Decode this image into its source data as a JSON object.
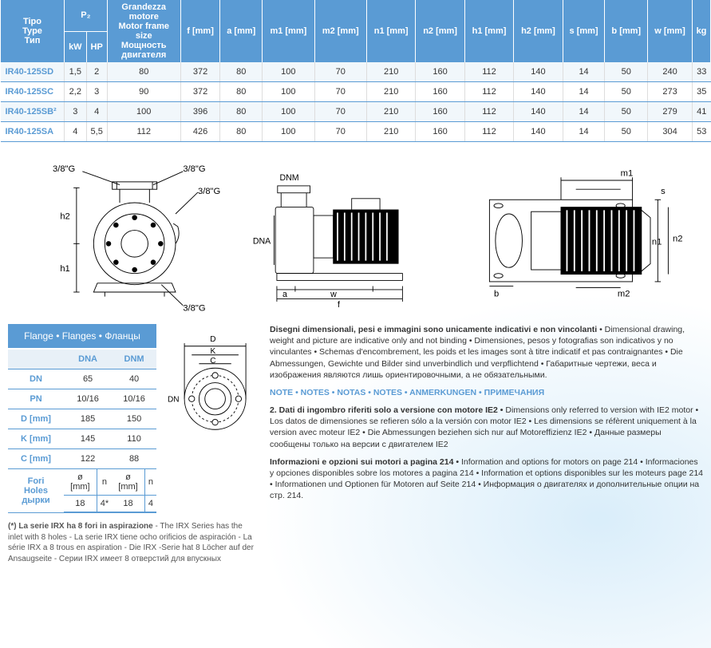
{
  "main_table": {
    "headers": {
      "type": [
        "Tipo",
        "Type",
        "Тип"
      ],
      "p2": "P₂",
      "p2_sub": [
        "kW",
        "HP"
      ],
      "motor": [
        "Grandezza motore",
        "Motor frame size",
        "Мощность двигателя"
      ],
      "dims": [
        "f [mm]",
        "a [mm]",
        "m1 [mm]",
        "m2 [mm]",
        "n1 [mm]",
        "n2 [mm]",
        "h1 [mm]",
        "h2 [mm]",
        "s [mm]",
        "b [mm]",
        "w [mm]",
        "kg"
      ]
    },
    "rows": [
      {
        "model": "IR40-125SD",
        "kw": "1,5",
        "hp": "2",
        "motor": "80",
        "f": "372",
        "a": "80",
        "m1": "100",
        "m2": "70",
        "n1": "210",
        "n2": "160",
        "h1": "112",
        "h2": "140",
        "s": "14",
        "b": "50",
        "w": "240",
        "kg": "33"
      },
      {
        "model": "IR40-125SC",
        "kw": "2,2",
        "hp": "3",
        "motor": "90",
        "f": "372",
        "a": "80",
        "m1": "100",
        "m2": "70",
        "n1": "210",
        "n2": "160",
        "h1": "112",
        "h2": "140",
        "s": "14",
        "b": "50",
        "w": "273",
        "kg": "35"
      },
      {
        "model": "IR40-125SB²",
        "kw": "3",
        "hp": "4",
        "motor": "100",
        "f": "396",
        "a": "80",
        "m1": "100",
        "m2": "70",
        "n1": "210",
        "n2": "160",
        "h1": "112",
        "h2": "140",
        "s": "14",
        "b": "50",
        "w": "279",
        "kg": "41"
      },
      {
        "model": "IR40-125SA",
        "kw": "4",
        "hp": "5,5",
        "motor": "112",
        "f": "426",
        "a": "80",
        "m1": "100",
        "m2": "70",
        "n1": "210",
        "n2": "160",
        "h1": "112",
        "h2": "140",
        "s": "14",
        "b": "50",
        "w": "304",
        "kg": "53"
      }
    ]
  },
  "diagram_labels": {
    "g38": "3/8\"G",
    "dnm": "DNM",
    "dna": "DNA",
    "a": "a",
    "f": "f",
    "w": "w",
    "b": "b",
    "h1": "h1",
    "h2": "h2",
    "n1": "n1",
    "n2": "n2",
    "m1": "m1",
    "m2": "m2",
    "s": "s",
    "D": "D",
    "K": "K",
    "C": "C",
    "DN": "DN"
  },
  "flanges": {
    "title": "Flange • Flanges • Фланцы",
    "cols": [
      "",
      "DNA",
      "DNM"
    ],
    "rows": [
      {
        "label": "DN",
        "dna": "65",
        "dnm": "40"
      },
      {
        "label": "PN",
        "dna": "10/16",
        "dnm": "10/16"
      },
      {
        "label": "D [mm]",
        "dna": "185",
        "dnm": "150"
      },
      {
        "label": "K [mm]",
        "dna": "145",
        "dnm": "110"
      },
      {
        "label": "C [mm]",
        "dna": "122",
        "dnm": "88"
      }
    ],
    "fori": {
      "label": [
        "Fori",
        "Holes",
        "дырки"
      ],
      "sub": [
        "ø [mm]",
        "n",
        "ø [mm]",
        "n"
      ],
      "vals": [
        "18",
        "4*",
        "18",
        "4"
      ]
    }
  },
  "footnote": {
    "head": "(*) La serie IRX ha 8 fori in aspirazione",
    "rest": " - The IRX Series has the inlet with 8 holes -  La serie IRX tiene ocho orificios de aspiración - La série IRX a 8 trous en aspiration - Die IRX -Serie hat 8 Löcher auf der Ansaugseite - Серии IRX имеет 8 отверстий для впускных"
  },
  "side_text": {
    "p1_bold": "Disegni dimensionali, pesi e immagini sono unicamente indicativi e non vincolanti",
    "p1_rest": " • Dimensional drawing, weight and picture are indicative only and not binding • Dimensiones, pesos y fotografias son indicativos y no vinculantes • Schemas d'encombrement, les poids et les images sont à titre indicatif et pas contraignantes • Die Abmessungen, Gewichte und Bilder sind unverbindlich und verpflichtend • Габаритные чертежи, веса и изображения являются лишь ориентировочными, а не обязательными.",
    "notes_hdr": "NOTE • NOTES • NOTAS • NOTES • ANMERKUNGEN • ПРИМЕЧАНИЯ",
    "p2_lead": "2.  Dati di ingombro riferiti solo a versione con motore IE2 •",
    "p2_rest": " Dimensions only referred to version with IE2 motor • Los datos de dimensiones se refieren sólo a la versión con  motor IE2 • Les dimensions se réfèrent uniquement à la version avec moteur IE2 • Die Abmessungen beziehen sich nur auf Motoreffizienz IE2 • Данные размеры сообщены только на версии с двигателем IE2",
    "p3_bold": "Informazioni e opzioni sui motori a pagina 214 •",
    "p3_rest": " Information and options for motors on page 214 • Informaciones y opciones disponibles sobre los motores a pagina 214 • Information et options disponibles sur les moteurs page 214 • Informationen und Optionen für Motoren auf Seite 214 • Информация о двигателях и дополнительные опции на стр. 214."
  }
}
